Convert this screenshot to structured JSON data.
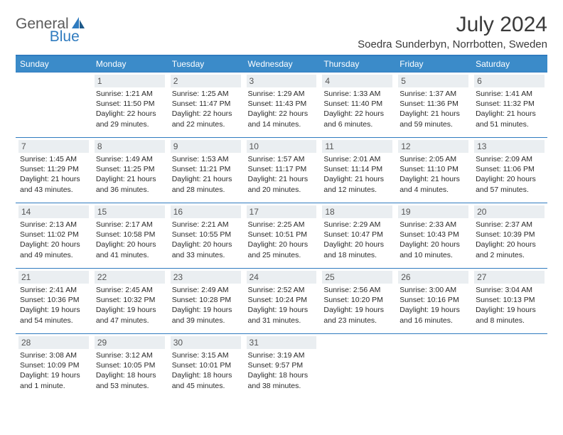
{
  "logo": {
    "text1": "General",
    "text2": "Blue"
  },
  "colors": {
    "brand_blue": "#2f7bbf",
    "header_blue": "#3b8bc9",
    "daynum_bg": "#eaeef1",
    "text_dark": "#3a3a3a",
    "logo_gray": "#5a5a5a"
  },
  "title": "July 2024",
  "location": "Soedra Sunderbyn, Norrbotten, Sweden",
  "daysOfWeek": [
    "Sunday",
    "Monday",
    "Tuesday",
    "Wednesday",
    "Thursday",
    "Friday",
    "Saturday"
  ],
  "weeks": [
    [
      null,
      {
        "n": "1",
        "sr": "Sunrise: 1:21 AM",
        "ss": "Sunset: 11:50 PM",
        "dl": "Daylight: 22 hours and 29 minutes."
      },
      {
        "n": "2",
        "sr": "Sunrise: 1:25 AM",
        "ss": "Sunset: 11:47 PM",
        "dl": "Daylight: 22 hours and 22 minutes."
      },
      {
        "n": "3",
        "sr": "Sunrise: 1:29 AM",
        "ss": "Sunset: 11:43 PM",
        "dl": "Daylight: 22 hours and 14 minutes."
      },
      {
        "n": "4",
        "sr": "Sunrise: 1:33 AM",
        "ss": "Sunset: 11:40 PM",
        "dl": "Daylight: 22 hours and 6 minutes."
      },
      {
        "n": "5",
        "sr": "Sunrise: 1:37 AM",
        "ss": "Sunset: 11:36 PM",
        "dl": "Daylight: 21 hours and 59 minutes."
      },
      {
        "n": "6",
        "sr": "Sunrise: 1:41 AM",
        "ss": "Sunset: 11:32 PM",
        "dl": "Daylight: 21 hours and 51 minutes."
      }
    ],
    [
      {
        "n": "7",
        "sr": "Sunrise: 1:45 AM",
        "ss": "Sunset: 11:29 PM",
        "dl": "Daylight: 21 hours and 43 minutes."
      },
      {
        "n": "8",
        "sr": "Sunrise: 1:49 AM",
        "ss": "Sunset: 11:25 PM",
        "dl": "Daylight: 21 hours and 36 minutes."
      },
      {
        "n": "9",
        "sr": "Sunrise: 1:53 AM",
        "ss": "Sunset: 11:21 PM",
        "dl": "Daylight: 21 hours and 28 minutes."
      },
      {
        "n": "10",
        "sr": "Sunrise: 1:57 AM",
        "ss": "Sunset: 11:17 PM",
        "dl": "Daylight: 21 hours and 20 minutes."
      },
      {
        "n": "11",
        "sr": "Sunrise: 2:01 AM",
        "ss": "Sunset: 11:14 PM",
        "dl": "Daylight: 21 hours and 12 minutes."
      },
      {
        "n": "12",
        "sr": "Sunrise: 2:05 AM",
        "ss": "Sunset: 11:10 PM",
        "dl": "Daylight: 21 hours and 4 minutes."
      },
      {
        "n": "13",
        "sr": "Sunrise: 2:09 AM",
        "ss": "Sunset: 11:06 PM",
        "dl": "Daylight: 20 hours and 57 minutes."
      }
    ],
    [
      {
        "n": "14",
        "sr": "Sunrise: 2:13 AM",
        "ss": "Sunset: 11:02 PM",
        "dl": "Daylight: 20 hours and 49 minutes."
      },
      {
        "n": "15",
        "sr": "Sunrise: 2:17 AM",
        "ss": "Sunset: 10:58 PM",
        "dl": "Daylight: 20 hours and 41 minutes."
      },
      {
        "n": "16",
        "sr": "Sunrise: 2:21 AM",
        "ss": "Sunset: 10:55 PM",
        "dl": "Daylight: 20 hours and 33 minutes."
      },
      {
        "n": "17",
        "sr": "Sunrise: 2:25 AM",
        "ss": "Sunset: 10:51 PM",
        "dl": "Daylight: 20 hours and 25 minutes."
      },
      {
        "n": "18",
        "sr": "Sunrise: 2:29 AM",
        "ss": "Sunset: 10:47 PM",
        "dl": "Daylight: 20 hours and 18 minutes."
      },
      {
        "n": "19",
        "sr": "Sunrise: 2:33 AM",
        "ss": "Sunset: 10:43 PM",
        "dl": "Daylight: 20 hours and 10 minutes."
      },
      {
        "n": "20",
        "sr": "Sunrise: 2:37 AM",
        "ss": "Sunset: 10:39 PM",
        "dl": "Daylight: 20 hours and 2 minutes."
      }
    ],
    [
      {
        "n": "21",
        "sr": "Sunrise: 2:41 AM",
        "ss": "Sunset: 10:36 PM",
        "dl": "Daylight: 19 hours and 54 minutes."
      },
      {
        "n": "22",
        "sr": "Sunrise: 2:45 AM",
        "ss": "Sunset: 10:32 PM",
        "dl": "Daylight: 19 hours and 47 minutes."
      },
      {
        "n": "23",
        "sr": "Sunrise: 2:49 AM",
        "ss": "Sunset: 10:28 PM",
        "dl": "Daylight: 19 hours and 39 minutes."
      },
      {
        "n": "24",
        "sr": "Sunrise: 2:52 AM",
        "ss": "Sunset: 10:24 PM",
        "dl": "Daylight: 19 hours and 31 minutes."
      },
      {
        "n": "25",
        "sr": "Sunrise: 2:56 AM",
        "ss": "Sunset: 10:20 PM",
        "dl": "Daylight: 19 hours and 23 minutes."
      },
      {
        "n": "26",
        "sr": "Sunrise: 3:00 AM",
        "ss": "Sunset: 10:16 PM",
        "dl": "Daylight: 19 hours and 16 minutes."
      },
      {
        "n": "27",
        "sr": "Sunrise: 3:04 AM",
        "ss": "Sunset: 10:13 PM",
        "dl": "Daylight: 19 hours and 8 minutes."
      }
    ],
    [
      {
        "n": "28",
        "sr": "Sunrise: 3:08 AM",
        "ss": "Sunset: 10:09 PM",
        "dl": "Daylight: 19 hours and 1 minute."
      },
      {
        "n": "29",
        "sr": "Sunrise: 3:12 AM",
        "ss": "Sunset: 10:05 PM",
        "dl": "Daylight: 18 hours and 53 minutes."
      },
      {
        "n": "30",
        "sr": "Sunrise: 3:15 AM",
        "ss": "Sunset: 10:01 PM",
        "dl": "Daylight: 18 hours and 45 minutes."
      },
      {
        "n": "31",
        "sr": "Sunrise: 3:19 AM",
        "ss": "Sunset: 9:57 PM",
        "dl": "Daylight: 18 hours and 38 minutes."
      },
      null,
      null,
      null
    ]
  ]
}
